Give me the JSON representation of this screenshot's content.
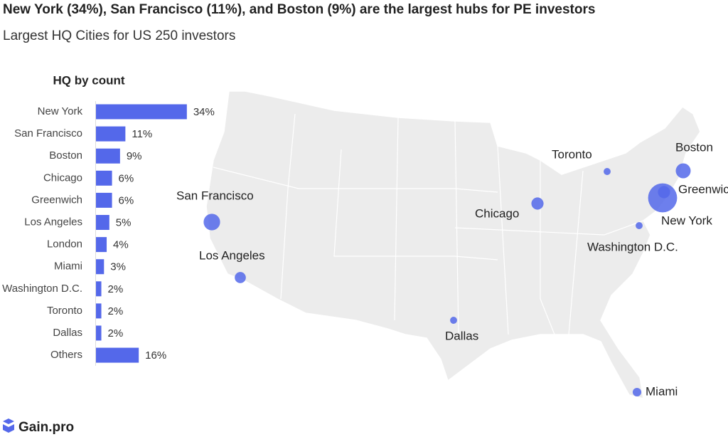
{
  "header": {
    "title": "New York (34%), San Francisco (11%), and Boston (9%) are the largest hubs for PE investors",
    "subtitle": "Largest HQ Cities for US 250 investors",
    "logo": "Gain.pro"
  },
  "chart_data": [
    {
      "type": "bar",
      "orientation": "horizontal",
      "title": "HQ by count",
      "color": "#5468ea",
      "categories": [
        "New York",
        "San Francisco",
        "Boston",
        "Chicago",
        "Greenwich",
        "Los Angeles",
        "London",
        "Miami",
        "Washington D.C.",
        "Toronto",
        "Dallas",
        "Others"
      ],
      "values": [
        34,
        11,
        9,
        6,
        6,
        5,
        4,
        3,
        2,
        2,
        2,
        16
      ],
      "value_labels": [
        "34%",
        "11%",
        "9%",
        "6%",
        "6%",
        "5%",
        "4%",
        "3%",
        "2%",
        "2%",
        "2%",
        "16%"
      ]
    },
    {
      "type": "bubble-map",
      "color": "#5468ea",
      "categories": [
        "New York",
        "San Francisco",
        "Boston",
        "Chicago",
        "Greenwich",
        "Los Angeles",
        "Miami",
        "Washington D.C.",
        "Toronto",
        "Dallas"
      ],
      "values": [
        34,
        11,
        9,
        6,
        6,
        5,
        3,
        2,
        2,
        2
      ]
    }
  ]
}
